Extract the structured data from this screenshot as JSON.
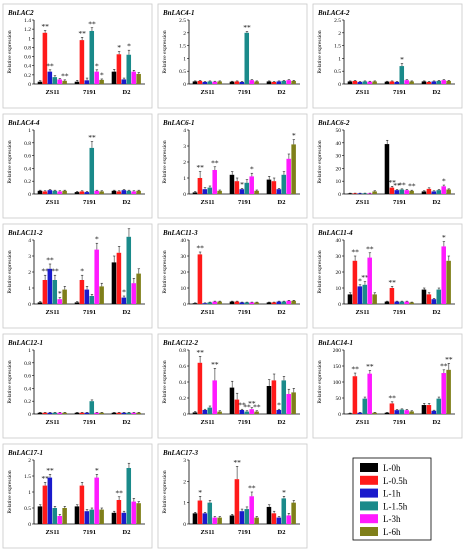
{
  "series_colors": [
    "#000000",
    "#ff1a1a",
    "#1a1acc",
    "#1a8a8a",
    "#ff1aff",
    "#7f7f1a"
  ],
  "legend": {
    "entries": [
      "L-0h",
      "L-0.5h",
      "L-1h",
      "L-1.5h",
      "L-3h",
      "L-6h"
    ]
  },
  "chart_data": [
    {
      "type": "bar",
      "title": "BnLAC2",
      "ylabel": "Relative expression",
      "categories": [
        "ZS11",
        "7191",
        "D2"
      ],
      "yticks": [
        "0",
        "0.2",
        "0.4",
        "0.6",
        "0.8",
        "1",
        "1.2",
        "1.4"
      ],
      "ylim": [
        0,
        1.4
      ],
      "values": [
        [
          0.05,
          1.12,
          0.27,
          0.15,
          0.1,
          0.07
        ],
        [
          0.05,
          0.96,
          0.08,
          1.16,
          0.27,
          0.09
        ],
        [
          0.27,
          0.65,
          0.1,
          0.64,
          0.27,
          0.22
        ]
      ],
      "errors": [
        [
          0.02,
          0.05,
          0.04,
          0.03,
          0.02,
          0.02
        ],
        [
          0.03,
          0.06,
          0.05,
          0.07,
          0.04,
          0.02
        ],
        [
          0.05,
          0.06,
          0.03,
          0.1,
          0.03,
          0.03
        ]
      ],
      "stars": [
        [
          "",
          "**",
          "**",
          "",
          "",
          "**"
        ],
        [
          "",
          "**",
          "",
          "**",
          "*",
          "*"
        ],
        [
          "",
          "*",
          "",
          "*",
          "",
          ""
        ]
      ]
    },
    {
      "type": "bar",
      "title": "BnLAC4-1",
      "ylabel": "Relative expression",
      "categories": [
        "ZS11",
        "7191",
        "D2"
      ],
      "yticks": [
        "0",
        "0.5",
        "1",
        "1.5",
        "2",
        "2.5"
      ],
      "ylim": [
        0,
        2.5
      ],
      "values": [
        [
          0.1,
          0.12,
          0.08,
          0.1,
          0.09,
          0.1
        ],
        [
          0.09,
          0.1,
          0.08,
          2.0,
          0.15,
          0.1
        ],
        [
          0.1,
          0.08,
          0.1,
          0.12,
          0.15,
          0.12
        ]
      ],
      "errors": [
        [
          0.02,
          0.02,
          0.02,
          0.02,
          0.02,
          0.02
        ],
        [
          0.02,
          0.02,
          0.02,
          0.05,
          0.02,
          0.02
        ],
        [
          0.02,
          0.02,
          0.02,
          0.02,
          0.02,
          0.02
        ]
      ],
      "stars": [
        [
          "",
          "",
          "",
          "",
          "",
          ""
        ],
        [
          "",
          "",
          "",
          "**",
          "",
          ""
        ],
        [
          "",
          "",
          "",
          "",
          "",
          ""
        ]
      ]
    },
    {
      "type": "bar",
      "title": "BnLAC4-2",
      "ylabel": "Relative expression",
      "categories": [
        "ZS11",
        "7191",
        "D2"
      ],
      "yticks": [
        "0",
        "0.5",
        "1",
        "1.5",
        "2",
        "2.5"
      ],
      "ylim": [
        0,
        2.5
      ],
      "values": [
        [
          0.1,
          0.12,
          0.08,
          0.1,
          0.09,
          0.1
        ],
        [
          0.09,
          0.1,
          0.08,
          0.7,
          0.15,
          0.1
        ],
        [
          0.1,
          0.08,
          0.1,
          0.12,
          0.15,
          0.12
        ]
      ],
      "errors": [
        [
          0.02,
          0.02,
          0.02,
          0.02,
          0.02,
          0.02
        ],
        [
          0.02,
          0.02,
          0.02,
          0.1,
          0.02,
          0.02
        ],
        [
          0.02,
          0.02,
          0.02,
          0.02,
          0.02,
          0.02
        ]
      ],
      "stars": [
        [
          "",
          "",
          "",
          "",
          "",
          ""
        ],
        [
          "",
          "",
          "",
          "*",
          "",
          ""
        ],
        [
          "",
          "",
          "",
          "",
          "",
          ""
        ]
      ]
    },
    {
      "type": "bar",
      "title": "BnLAC4-4",
      "ylabel": "Relative expression",
      "categories": [
        "ZS11",
        "7191",
        "D2"
      ],
      "yticks": [
        "0",
        "0.2",
        "0.4",
        "0.6",
        "0.8",
        "1"
      ],
      "ylim": [
        0,
        1
      ],
      "values": [
        [
          0.05,
          0.04,
          0.06,
          0.05,
          0.04,
          0.05
        ],
        [
          0.03,
          0.04,
          0.03,
          0.72,
          0.05,
          0.04
        ],
        [
          0.05,
          0.04,
          0.06,
          0.05,
          0.04,
          0.05
        ]
      ],
      "errors": [
        [
          0.01,
          0.01,
          0.01,
          0.01,
          0.01,
          0.01
        ],
        [
          0.01,
          0.01,
          0.01,
          0.1,
          0.01,
          0.01
        ],
        [
          0.01,
          0.01,
          0.01,
          0.01,
          0.01,
          0.01
        ]
      ],
      "stars": [
        [
          "",
          "",
          "",
          "",
          "",
          ""
        ],
        [
          "",
          "",
          "",
          "**",
          "",
          ""
        ],
        [
          "",
          "",
          "",
          "",
          "",
          ""
        ]
      ]
    },
    {
      "type": "bar",
      "title": "BnLAC6-1",
      "ylabel": "Relative expression",
      "categories": [
        "ZS11",
        "7191",
        "D2"
      ],
      "yticks": [
        "0",
        "1",
        "2",
        "3",
        "4"
      ],
      "ylim": [
        0,
        4
      ],
      "values": [
        [
          0.1,
          1.0,
          0.3,
          0.4,
          1.5,
          0.2
        ],
        [
          1.2,
          0.8,
          0.3,
          0.7,
          1.1,
          0.2
        ],
        [
          0.9,
          0.8,
          0.3,
          1.2,
          2.2,
          3.1
        ]
      ],
      "errors": [
        [
          0.05,
          0.4,
          0.1,
          0.1,
          0.2,
          0.05
        ],
        [
          0.2,
          0.2,
          0.05,
          0.2,
          0.2,
          0.05
        ],
        [
          0.2,
          0.2,
          0.05,
          0.2,
          0.3,
          0.3
        ]
      ],
      "stars": [
        [
          "",
          "**",
          "",
          "",
          "**",
          ""
        ],
        [
          "",
          "",
          "*",
          "",
          "*",
          ""
        ],
        [
          "",
          "",
          "",
          "",
          "",
          "*"
        ]
      ]
    },
    {
      "type": "bar",
      "title": "BnLAC6-2",
      "ylabel": "Relative expression",
      "categories": [
        "ZS11",
        "7191",
        "D2"
      ],
      "yticks": [
        "0",
        "10",
        "20",
        "30",
        "40",
        "50"
      ],
      "ylim": [
        0,
        50
      ],
      "values": [
        [
          0.5,
          0.5,
          0.5,
          0.5,
          0.5,
          2
        ],
        [
          39,
          5,
          3,
          3.5,
          3,
          2.5
        ],
        [
          2,
          4,
          2,
          3,
          6,
          3.5
        ]
      ],
      "errors": [
        [
          0.2,
          0.2,
          0.2,
          0.2,
          0.2,
          0.5
        ],
        [
          3,
          1,
          0.5,
          0.5,
          0.5,
          0.5
        ],
        [
          0.5,
          0.8,
          0.5,
          0.5,
          1,
          0.5
        ]
      ],
      "stars": [
        [
          "",
          "",
          "",
          "",
          "",
          ""
        ],
        [
          "",
          "**",
          "**",
          "**",
          "",
          "**"
        ],
        [
          "",
          "",
          "",
          "",
          "*",
          ""
        ]
      ]
    },
    {
      "type": "bar",
      "title": "BnLAC11-2",
      "ylabel": "Relative expression",
      "categories": [
        "ZS11",
        "7191",
        "D2"
      ],
      "yticks": [
        "0",
        "1",
        "2",
        "3",
        "4"
      ],
      "ylim": [
        0,
        4
      ],
      "values": [
        [
          0.1,
          1.5,
          2.2,
          1.5,
          0.3,
          0.9
        ],
        [
          0.1,
          1.5,
          0.9,
          0.5,
          3.4,
          1.1
        ],
        [
          2.6,
          3.2,
          0.4,
          4.2,
          1.3,
          1.9
        ]
      ],
      "errors": [
        [
          0.05,
          0.3,
          0.3,
          0.3,
          0.1,
          0.2
        ],
        [
          0.05,
          0.3,
          0.2,
          0.1,
          0.4,
          0.2
        ],
        [
          0.4,
          0.4,
          0.1,
          0.5,
          0.3,
          0.3
        ]
      ],
      "stars": [
        [
          "",
          "**",
          "**",
          "**",
          "*",
          ""
        ],
        [
          "",
          "*",
          "",
          "",
          "*",
          ""
        ],
        [
          "",
          "",
          "*",
          "",
          "",
          ""
        ]
      ]
    },
    {
      "type": "bar",
      "title": "BnLAC11-3",
      "ylabel": "Relative expression",
      "categories": [
        "ZS11",
        "7191",
        "D2"
      ],
      "yticks": [
        "0",
        "10",
        "20",
        "30",
        "40"
      ],
      "ylim": [
        0,
        40
      ],
      "values": [
        [
          0.5,
          31,
          0.5,
          1,
          1.5,
          1.5
        ],
        [
          1.5,
          1.5,
          1,
          1,
          1,
          1
        ],
        [
          1,
          1,
          1.5,
          1.5,
          2,
          2
        ]
      ],
      "errors": [
        [
          0.2,
          1.5,
          0.2,
          0.2,
          0.3,
          0.3
        ],
        [
          0.3,
          0.3,
          0.2,
          0.2,
          0.2,
          0.2
        ],
        [
          0.2,
          0.2,
          0.3,
          0.3,
          0.3,
          0.3
        ]
      ],
      "stars": [
        [
          "",
          "**",
          "",
          "",
          "",
          ""
        ],
        [
          "",
          "",
          "",
          "",
          "",
          ""
        ],
        [
          "",
          "",
          "",
          "",
          "",
          ""
        ]
      ]
    },
    {
      "type": "bar",
      "title": "BnLAC11-4",
      "ylabel": "Relative expression",
      "categories": [
        "ZS11",
        "7191",
        "D2"
      ],
      "yticks": [
        "0",
        "10",
        "20",
        "30",
        "40"
      ],
      "ylim": [
        0,
        40
      ],
      "values": [
        [
          6,
          27,
          11,
          12,
          29,
          6
        ],
        [
          1.5,
          10,
          1.5,
          1.5,
          1.5,
          1
        ],
        [
          9,
          6,
          3,
          9,
          36,
          27
        ]
      ],
      "errors": [
        [
          1,
          3,
          1,
          2,
          3,
          1
        ],
        [
          0.3,
          1,
          0.3,
          0.3,
          0.3,
          0.2
        ],
        [
          1,
          1,
          0.5,
          1,
          3,
          3
        ]
      ],
      "stars": [
        [
          "",
          "**",
          "*",
          "**",
          "**",
          ""
        ],
        [
          "",
          "**",
          "",
          "",
          "",
          ""
        ],
        [
          "",
          "",
          "",
          "",
          "*",
          ""
        ]
      ]
    },
    {
      "type": "bar",
      "title": "BnLAC12-1",
      "ylabel": "Relative expression",
      "categories": [
        "ZS11",
        "7191",
        "D2"
      ],
      "yticks": [
        "0",
        "0.2",
        "0.4",
        "0.6",
        "0.8",
        "1"
      ],
      "ylim": [
        0,
        1
      ],
      "values": [
        [
          0.02,
          0.02,
          0.02,
          0.02,
          0.02,
          0.02
        ],
        [
          0.02,
          0.02,
          0.02,
          0.2,
          0.02,
          0.02
        ],
        [
          0.02,
          0.02,
          0.02,
          0.02,
          0.02,
          0.02
        ]
      ],
      "errors": [
        [
          0.005,
          0.005,
          0.005,
          0.005,
          0.005,
          0.005
        ],
        [
          0.005,
          0.005,
          0.005,
          0.02,
          0.005,
          0.005
        ],
        [
          0.005,
          0.005,
          0.005,
          0.005,
          0.005,
          0.005
        ]
      ],
      "stars": [
        [
          "",
          "",
          "",
          "",
          "",
          ""
        ],
        [
          "",
          "",
          "",
          "",
          "",
          ""
        ],
        [
          "",
          "",
          "",
          "",
          "",
          ""
        ]
      ]
    },
    {
      "type": "bar",
      "title": "BnLAC12-2",
      "ylabel": "Relative expression",
      "categories": [
        "ZS11",
        "7191",
        "D2"
      ],
      "yticks": [
        "0",
        "0.2",
        "0.4",
        "0.6",
        "0.8"
      ],
      "ylim": [
        0,
        0.8
      ],
      "values": [
        [
          0.02,
          0.64,
          0.05,
          0.08,
          0.42,
          0.03
        ],
        [
          0.33,
          0.18,
          0.05,
          0.03,
          0.06,
          0.03
        ],
        [
          0.35,
          0.42,
          0.05,
          0.42,
          0.25,
          0.27
        ]
      ],
      "errors": [
        [
          0.01,
          0.08,
          0.01,
          0.02,
          0.15,
          0.01
        ],
        [
          0.08,
          0.08,
          0.01,
          0.01,
          0.02,
          0.01
        ],
        [
          0.08,
          0.08,
          0.01,
          0.05,
          0.06,
          0.05
        ]
      ],
      "stars": [
        [
          "",
          "**",
          "",
          "",
          "**",
          ""
        ],
        [
          "",
          "",
          "**",
          "**",
          "**",
          "**"
        ],
        [
          "",
          "",
          "*",
          "",
          "",
          ""
        ]
      ]
    },
    {
      "type": "bar",
      "title": "BnLAC14-1",
      "ylabel": "Relative expression",
      "categories": [
        "ZS11",
        "7191",
        "D2"
      ],
      "yticks": [
        "0",
        "50",
        "100",
        "150",
        "200"
      ],
      "ylim": [
        0,
        200
      ],
      "values": [
        [
          2,
          118,
          4,
          48,
          126,
          4
        ],
        [
          4,
          33,
          12,
          14,
          12,
          8
        ],
        [
          28,
          28,
          10,
          48,
          128,
          138
        ]
      ],
      "errors": [
        [
          1,
          10,
          1,
          5,
          10,
          1
        ],
        [
          1,
          5,
          2,
          2,
          2,
          2
        ],
        [
          5,
          5,
          2,
          5,
          10,
          20
        ]
      ],
      "stars": [
        [
          "",
          "**",
          "",
          "",
          "**",
          ""
        ],
        [
          "",
          "**",
          "",
          "",
          "",
          ""
        ],
        [
          "",
          "",
          "",
          "",
          "**",
          "**"
        ]
      ]
    },
    {
      "type": "bar",
      "title": "BnLAC17-1",
      "ylabel": "Relative expression",
      "categories": [
        "ZS11",
        "7191",
        "D2"
      ],
      "yticks": [
        "0",
        "0.5",
        "1",
        "1.5",
        "2"
      ],
      "ylim": [
        0,
        2
      ],
      "values": [
        [
          0.55,
          1.2,
          1.45,
          0.5,
          0.25,
          0.5
        ],
        [
          0.55,
          1.2,
          0.4,
          0.45,
          1.45,
          0.45
        ],
        [
          0.35,
          0.75,
          0.35,
          1.75,
          0.7,
          0.65
        ]
      ],
      "errors": [
        [
          0.05,
          0.1,
          0.1,
          0.05,
          0.05,
          0.05
        ],
        [
          0.05,
          0.1,
          0.05,
          0.05,
          0.1,
          0.05
        ],
        [
          0.05,
          0.1,
          0.05,
          0.15,
          0.1,
          0.05
        ]
      ],
      "stars": [
        [
          "",
          "**",
          "**",
          "",
          "",
          ""
        ],
        [
          "",
          "",
          "",
          "",
          "*",
          ""
        ],
        [
          "",
          "**",
          "",
          "",
          "",
          ""
        ]
      ]
    },
    {
      "type": "bar",
      "title": "BnLAC17-3",
      "ylabel": "Relative expression",
      "categories": [
        "ZS11",
        "7191",
        "D2"
      ],
      "yticks": [
        "0",
        "1",
        "2",
        "3"
      ],
      "ylim": [
        0,
        3
      ],
      "values": [
        [
          0.5,
          1.1,
          0.5,
          1.0,
          0.3,
          0.3
        ],
        [
          0.4,
          2.1,
          0.6,
          0.7,
          1.3,
          0.3
        ],
        [
          0.8,
          0.5,
          0.3,
          1.2,
          0.4,
          1.0
        ]
      ],
      "errors": [
        [
          0.05,
          0.2,
          0.05,
          0.1,
          0.05,
          0.05
        ],
        [
          0.05,
          0.6,
          0.1,
          0.1,
          0.2,
          0.05
        ],
        [
          0.1,
          0.1,
          0.05,
          0.1,
          0.1,
          0.1
        ]
      ],
      "stars": [
        [
          "",
          "*",
          "",
          "",
          "",
          ""
        ],
        [
          "",
          "**",
          "",
          "",
          "**",
          ""
        ],
        [
          "",
          "",
          "",
          "*",
          "",
          ""
        ]
      ]
    }
  ]
}
